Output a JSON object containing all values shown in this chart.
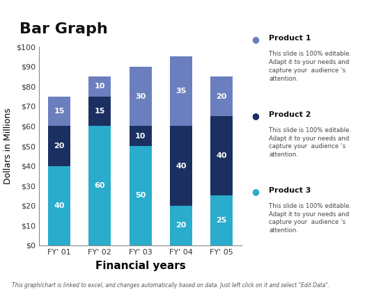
{
  "title": "Bar Graph",
  "xlabel": "Financial years",
  "ylabel": "Dollars in Millions",
  "categories": [
    "FY' 01",
    "FY' 02",
    "FY' 03",
    "FY' 04",
    "FY' 05"
  ],
  "product1_values": [
    15,
    10,
    30,
    35,
    20
  ],
  "product2_values": [
    20,
    15,
    10,
    40,
    40
  ],
  "product3_values": [
    40,
    60,
    50,
    20,
    25
  ],
  "color_product1": "#6B7FBF",
  "color_product2": "#1B3060",
  "color_product3": "#2AACCC",
  "ylim": [
    0,
    100
  ],
  "yticks": [
    0,
    10,
    20,
    30,
    40,
    50,
    60,
    70,
    80,
    90,
    100
  ],
  "ytick_labels": [
    "$0",
    "$10",
    "$20",
    "$30",
    "$40",
    "$50",
    "$60",
    "$70",
    "$80",
    "$90",
    "$100"
  ],
  "legend_labels": [
    "Product 1",
    "Product 2",
    "Product 3"
  ],
  "legend_desc": [
    "This slide is 100% editable.\nAdapt it to your needs and\ncapture your  audience ’s\nattention.",
    "This slide is 100% editable.\nAdapt it to your needs and\ncapture your  audience ’s\nattention.",
    "This slide is 100% editable.\nAdapt it to your needs and\ncapture your  audience ’s\nattention."
  ],
  "legend_dot_colors": [
    "#6B7FBF",
    "#1B3060",
    "#2AACCC"
  ],
  "footer_text": "This graph/chart is linked to excel, and changes automatically based on data. Just left click on it and select \"Edit Data\".",
  "bg_color": "#FFFFFF",
  "header_bar_color": "#1B3060",
  "title_fontsize": 16,
  "axis_xlabel_fontsize": 11,
  "axis_ylabel_fontsize": 9,
  "tick_fontsize": 8,
  "bar_width": 0.55,
  "bar_label_fontsize": 8,
  "bar_label_color": "#FFFFFF"
}
